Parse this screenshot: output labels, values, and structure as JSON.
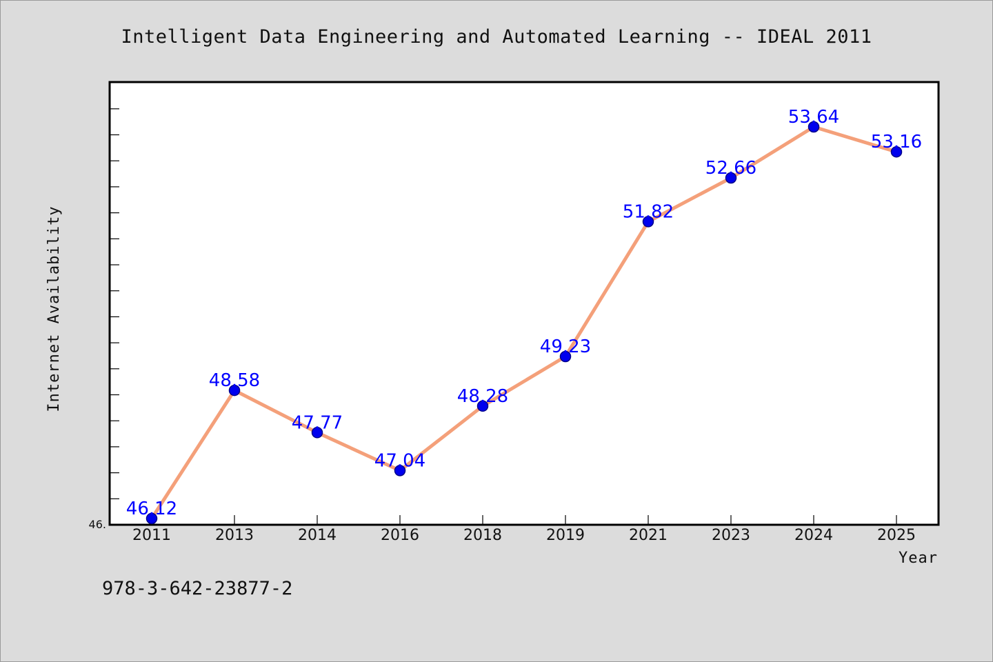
{
  "chart_data": {
    "type": "line",
    "title": "Intelligent Data Engineering and Automated Learning -- IDEAL 2011",
    "xlabel": "Year",
    "ylabel": "Internet Availability",
    "categories": [
      "2011",
      "2013",
      "2014",
      "2016",
      "2018",
      "2019",
      "2021",
      "2023",
      "2024",
      "2025"
    ],
    "series": [
      {
        "values": [
          46.12,
          48.58,
          47.77,
          47.04,
          48.28,
          49.23,
          51.82,
          52.66,
          53.64,
          53.16
        ],
        "data_labels": [
          "46.12",
          "48.58",
          "47.77",
          "47.04",
          "48.28",
          "49.23",
          "51.82",
          "52.66",
          "53.64",
          "53.16"
        ]
      }
    ],
    "ylim": [
      46.0,
      54.5
    ],
    "y_min_label": "46.",
    "grid": false,
    "line_color": "#f4a07a",
    "marker_color": "#0000ee",
    "label_color": "#0000ff"
  },
  "footer": {
    "isbn": "978-3-642-23877-2"
  }
}
